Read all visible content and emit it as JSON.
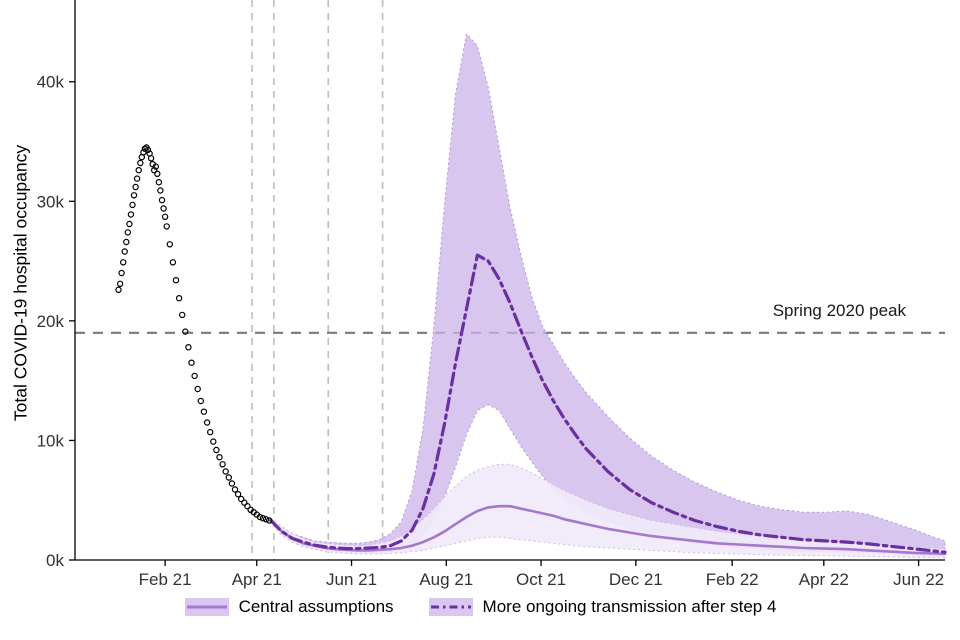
{
  "figure": {
    "background": "#ffffff",
    "axis_color": "#000000",
    "tick_label_color": "#333333"
  },
  "legend": {
    "swatch_fill": "#d8c7ee"
  },
  "chart_data": {
    "type": "line",
    "title": "",
    "xlabel": "",
    "ylabel": "Total COVID-19 hospital occupancy",
    "y_unit": "thousands",
    "ylim": [
      0,
      46
    ],
    "grid": "off",
    "legend_position": "bottom",
    "x_domain": [
      "2020-12-05",
      "2022-06-18"
    ],
    "x_ticks": [
      {
        "date": "2021-02-01",
        "label": "Feb 21"
      },
      {
        "date": "2021-04-01",
        "label": "Apr 21"
      },
      {
        "date": "2021-06-01",
        "label": "Jun 21"
      },
      {
        "date": "2021-08-01",
        "label": "Aug 21"
      },
      {
        "date": "2021-10-01",
        "label": "Oct 21"
      },
      {
        "date": "2021-12-01",
        "label": "Dec 21"
      },
      {
        "date": "2022-02-01",
        "label": "Feb 22"
      },
      {
        "date": "2022-04-01",
        "label": "Apr 22"
      },
      {
        "date": "2022-06-01",
        "label": "Jun 22"
      }
    ],
    "y_ticks": [
      {
        "v": 0,
        "label": "0k"
      },
      {
        "v": 10,
        "label": "10k"
      },
      {
        "v": 20,
        "label": "20k"
      },
      {
        "v": 30,
        "label": "30k"
      },
      {
        "v": 40,
        "label": "40k"
      }
    ],
    "hline": {
      "value": 19,
      "label": "Spring 2020 peak",
      "color": "#7a7a7a",
      "style": "dashed"
    },
    "vlines": {
      "style": "dashed",
      "color": "#bdbdbd",
      "dates": [
        "2021-03-29",
        "2021-04-12",
        "2021-05-17",
        "2021-06-21"
      ]
    },
    "observed": {
      "name": "observed hospital occupancy",
      "marker": "open-circle",
      "color": "#000000",
      "points": [
        [
          "2021-01-02",
          22.6
        ],
        [
          "2021-01-03",
          23.1
        ],
        [
          "2021-01-04",
          24.0
        ],
        [
          "2021-01-05",
          24.9
        ],
        [
          "2021-01-06",
          25.8
        ],
        [
          "2021-01-07",
          26.6
        ],
        [
          "2021-01-08",
          27.4
        ],
        [
          "2021-01-09",
          28.1
        ],
        [
          "2021-01-10",
          28.9
        ],
        [
          "2021-01-11",
          29.7
        ],
        [
          "2021-01-12",
          30.5
        ],
        [
          "2021-01-13",
          31.2
        ],
        [
          "2021-01-14",
          31.9
        ],
        [
          "2021-01-15",
          32.6
        ],
        [
          "2021-01-16",
          33.2
        ],
        [
          "2021-01-17",
          33.7
        ],
        [
          "2021-01-18",
          34.1
        ],
        [
          "2021-01-19",
          34.4
        ],
        [
          "2021-01-20",
          34.5
        ],
        [
          "2021-01-21",
          34.3
        ],
        [
          "2021-01-22",
          34.0
        ],
        [
          "2021-01-23",
          33.6
        ],
        [
          "2021-01-24",
          33.1
        ],
        [
          "2021-01-25",
          32.6
        ],
        [
          "2021-01-26",
          32.9
        ],
        [
          "2021-01-27",
          32.3
        ],
        [
          "2021-01-28",
          31.6
        ],
        [
          "2021-01-29",
          30.9
        ],
        [
          "2021-01-30",
          30.1
        ],
        [
          "2021-01-31",
          29.4
        ],
        [
          "2021-02-01",
          28.7
        ],
        [
          "2021-02-02",
          27.9
        ],
        [
          "2021-02-04",
          26.4
        ],
        [
          "2021-02-06",
          24.9
        ],
        [
          "2021-02-08",
          23.4
        ],
        [
          "2021-02-10",
          21.9
        ],
        [
          "2021-02-12",
          20.5
        ],
        [
          "2021-02-14",
          19.1
        ],
        [
          "2021-02-16",
          17.8
        ],
        [
          "2021-02-18",
          16.5
        ],
        [
          "2021-02-20",
          15.4
        ],
        [
          "2021-02-22",
          14.3
        ],
        [
          "2021-02-24",
          13.3
        ],
        [
          "2021-02-26",
          12.4
        ],
        [
          "2021-02-28",
          11.5
        ],
        [
          "2021-03-02",
          10.7
        ],
        [
          "2021-03-04",
          9.9
        ],
        [
          "2021-03-06",
          9.2
        ],
        [
          "2021-03-08",
          8.6
        ],
        [
          "2021-03-10",
          8.0
        ],
        [
          "2021-03-12",
          7.4
        ],
        [
          "2021-03-14",
          6.9
        ],
        [
          "2021-03-16",
          6.4
        ],
        [
          "2021-03-18",
          5.9
        ],
        [
          "2021-03-20",
          5.5
        ],
        [
          "2021-03-22",
          5.1
        ],
        [
          "2021-03-24",
          4.8
        ],
        [
          "2021-03-26",
          4.5
        ],
        [
          "2021-03-28",
          4.2
        ],
        [
          "2021-03-30",
          4.0
        ],
        [
          "2021-04-01",
          3.8
        ],
        [
          "2021-04-03",
          3.6
        ],
        [
          "2021-04-05",
          3.5
        ],
        [
          "2021-04-07",
          3.4
        ],
        [
          "2021-04-09",
          3.3
        ]
      ]
    },
    "series": [
      {
        "name": "Central assumptions",
        "line_style": "solid",
        "line_color": "#a678cc",
        "ribbon_color": "#efe9f9",
        "ribbon_edge": "#cdb9ea",
        "ribbon_opacity": 0.9,
        "points_format": [
          "date",
          "median",
          "lo",
          "hi"
        ],
        "points": [
          [
            "2021-04-10",
            3.3,
            3.1,
            3.5
          ],
          [
            "2021-04-17",
            2.4,
            2.1,
            2.8
          ],
          [
            "2021-04-24",
            1.8,
            1.5,
            2.2
          ],
          [
            "2021-05-01",
            1.4,
            1.1,
            1.8
          ],
          [
            "2021-05-08",
            1.2,
            0.9,
            1.5
          ],
          [
            "2021-05-15",
            1.0,
            0.7,
            1.4
          ],
          [
            "2021-05-22",
            0.9,
            0.6,
            1.3
          ],
          [
            "2021-05-29",
            0.85,
            0.55,
            1.25
          ],
          [
            "2021-06-05",
            0.8,
            0.5,
            1.2
          ],
          [
            "2021-06-12",
            0.8,
            0.5,
            1.25
          ],
          [
            "2021-06-19",
            0.85,
            0.5,
            1.4
          ],
          [
            "2021-06-26",
            0.9,
            0.55,
            1.6
          ],
          [
            "2021-07-03",
            1.0,
            0.6,
            2.0
          ],
          [
            "2021-07-10",
            1.2,
            0.7,
            2.6
          ],
          [
            "2021-07-17",
            1.5,
            0.8,
            3.4
          ],
          [
            "2021-07-24",
            1.9,
            1.0,
            4.3
          ],
          [
            "2021-07-31",
            2.4,
            1.2,
            5.3
          ],
          [
            "2021-08-07",
            3.0,
            1.4,
            6.2
          ],
          [
            "2021-08-14",
            3.6,
            1.6,
            7.0
          ],
          [
            "2021-08-21",
            4.1,
            1.8,
            7.5
          ],
          [
            "2021-08-28",
            4.4,
            1.9,
            7.8
          ],
          [
            "2021-09-04",
            4.5,
            1.9,
            8.0
          ],
          [
            "2021-09-11",
            4.5,
            1.8,
            8.0
          ],
          [
            "2021-09-18",
            4.3,
            1.7,
            7.7
          ],
          [
            "2021-09-25",
            4.1,
            1.6,
            7.3
          ],
          [
            "2021-10-02",
            3.9,
            1.5,
            6.8
          ],
          [
            "2021-10-09",
            3.7,
            1.4,
            6.3
          ],
          [
            "2021-10-16",
            3.4,
            1.3,
            5.8
          ],
          [
            "2021-10-23",
            3.2,
            1.2,
            5.4
          ],
          [
            "2021-10-30",
            3.0,
            1.1,
            5.0
          ],
          [
            "2021-11-13",
            2.6,
            1.0,
            4.3
          ],
          [
            "2021-11-27",
            2.3,
            0.9,
            3.8
          ],
          [
            "2021-12-11",
            2.0,
            0.8,
            3.3
          ],
          [
            "2021-12-25",
            1.8,
            0.7,
            3.0
          ],
          [
            "2022-01-08",
            1.6,
            0.6,
            2.7
          ],
          [
            "2022-01-22",
            1.4,
            0.55,
            2.4
          ],
          [
            "2022-02-05",
            1.3,
            0.5,
            2.2
          ],
          [
            "2022-02-19",
            1.2,
            0.45,
            2.0
          ],
          [
            "2022-03-05",
            1.1,
            0.4,
            1.9
          ],
          [
            "2022-03-19",
            1.0,
            0.38,
            1.7
          ],
          [
            "2022-04-02",
            0.95,
            0.35,
            1.6
          ],
          [
            "2022-04-16",
            0.9,
            0.32,
            1.5
          ],
          [
            "2022-04-30",
            0.8,
            0.3,
            1.4
          ],
          [
            "2022-05-14",
            0.7,
            0.26,
            1.2
          ],
          [
            "2022-05-28",
            0.6,
            0.22,
            1.1
          ],
          [
            "2022-06-11",
            0.55,
            0.2,
            1.0
          ],
          [
            "2022-06-18",
            0.5,
            0.18,
            0.9
          ]
        ]
      },
      {
        "name": "More ongoing transmission after step 4",
        "line_style": "dashdot",
        "line_color": "#6a2fa0",
        "ribbon_color": "#ccb3e8",
        "ribbon_edge": "#b192da",
        "ribbon_opacity": 0.75,
        "points_format": [
          "date",
          "median",
          "lo",
          "hi"
        ],
        "points": [
          [
            "2021-04-10",
            3.3,
            3.1,
            3.5
          ],
          [
            "2021-04-17",
            2.4,
            2.1,
            2.8
          ],
          [
            "2021-04-24",
            1.8,
            1.5,
            2.2
          ],
          [
            "2021-05-01",
            1.5,
            1.1,
            1.9
          ],
          [
            "2021-05-08",
            1.25,
            0.9,
            1.6
          ],
          [
            "2021-05-15",
            1.1,
            0.8,
            1.5
          ],
          [
            "2021-05-22",
            1.0,
            0.7,
            1.45
          ],
          [
            "2021-05-29",
            0.95,
            0.65,
            1.4
          ],
          [
            "2021-06-05",
            0.95,
            0.6,
            1.4
          ],
          [
            "2021-06-12",
            1.0,
            0.6,
            1.5
          ],
          [
            "2021-06-19",
            1.05,
            0.65,
            1.7
          ],
          [
            "2021-06-26",
            1.2,
            0.7,
            2.2
          ],
          [
            "2021-07-03",
            1.6,
            0.9,
            3.2
          ],
          [
            "2021-07-10",
            2.5,
            1.3,
            5.8
          ],
          [
            "2021-07-17",
            4.3,
            2.1,
            11.0
          ],
          [
            "2021-07-24",
            7.2,
            3.4,
            19.5
          ],
          [
            "2021-07-31",
            11.5,
            5.3,
            30.0
          ],
          [
            "2021-08-07",
            16.5,
            7.8,
            39.0
          ],
          [
            "2021-08-14",
            21.0,
            10.5,
            44.0
          ],
          [
            "2021-08-21",
            25.5,
            12.5,
            43.0
          ],
          [
            "2021-08-28",
            25.0,
            13.0,
            39.5
          ],
          [
            "2021-09-04",
            23.5,
            12.5,
            34.5
          ],
          [
            "2021-09-11",
            21.5,
            11.0,
            29.5
          ],
          [
            "2021-09-18",
            19.2,
            9.5,
            25.5
          ],
          [
            "2021-09-25",
            17.0,
            8.2,
            22.0
          ],
          [
            "2021-10-02",
            15.0,
            7.0,
            19.5
          ],
          [
            "2021-10-09",
            13.3,
            6.0,
            18.0
          ],
          [
            "2021-10-16",
            11.8,
            5.2,
            16.5
          ],
          [
            "2021-10-23",
            10.5,
            4.6,
            15.2
          ],
          [
            "2021-10-30",
            9.3,
            4.0,
            14.0
          ],
          [
            "2021-11-13",
            7.4,
            3.2,
            12.0
          ],
          [
            "2021-11-27",
            5.9,
            2.6,
            10.2
          ],
          [
            "2021-12-11",
            4.8,
            2.1,
            8.7
          ],
          [
            "2021-12-25",
            4.0,
            1.7,
            7.5
          ],
          [
            "2022-01-08",
            3.3,
            1.4,
            6.5
          ],
          [
            "2022-01-22",
            2.8,
            1.2,
            5.7
          ],
          [
            "2022-02-05",
            2.4,
            1.0,
            5.0
          ],
          [
            "2022-02-19",
            2.1,
            0.9,
            4.5
          ],
          [
            "2022-03-05",
            1.9,
            0.8,
            4.2
          ],
          [
            "2022-03-19",
            1.7,
            0.75,
            4.0
          ],
          [
            "2022-04-02",
            1.6,
            0.7,
            4.0
          ],
          [
            "2022-04-16",
            1.5,
            0.65,
            4.1
          ],
          [
            "2022-04-30",
            1.35,
            0.6,
            3.8
          ],
          [
            "2022-05-14",
            1.15,
            0.5,
            3.2
          ],
          [
            "2022-05-28",
            0.95,
            0.4,
            2.6
          ],
          [
            "2022-06-11",
            0.75,
            0.3,
            1.9
          ],
          [
            "2022-06-18",
            0.65,
            0.25,
            1.6
          ]
        ]
      }
    ]
  }
}
